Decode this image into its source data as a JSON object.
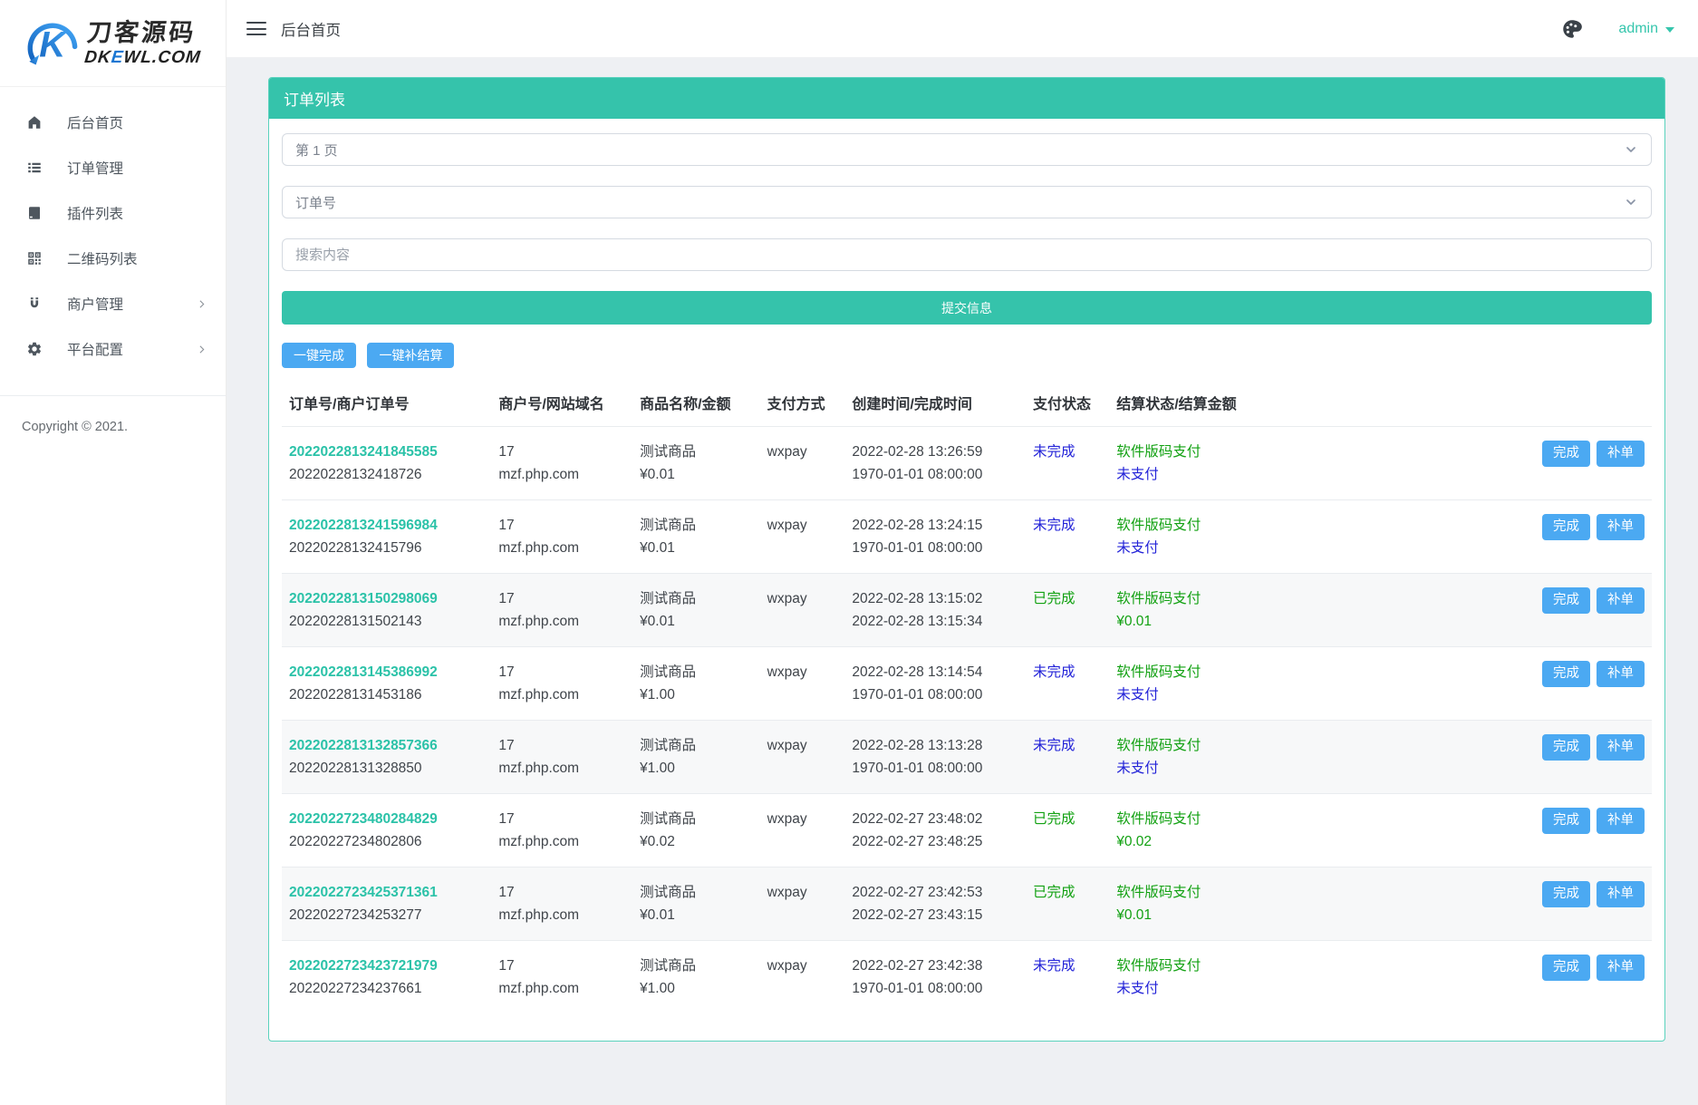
{
  "header": {
    "title": "后台首页",
    "user": "admin"
  },
  "sidebar": {
    "logo": {
      "line1": "刀客源码",
      "line2_pre": "DK",
      "line2_e": "E",
      "line2_post": "WL.COM"
    },
    "items": [
      {
        "name": "home",
        "icon": "home-icon",
        "label": "后台首页",
        "has_children": false
      },
      {
        "name": "orders",
        "icon": "list-icon",
        "label": "订单管理",
        "has_children": false
      },
      {
        "name": "plugins",
        "icon": "plugin-icon",
        "label": "插件列表",
        "has_children": false
      },
      {
        "name": "qrcodes",
        "icon": "qrcode-icon",
        "label": "二维码列表",
        "has_children": false
      },
      {
        "name": "merchants",
        "icon": "magnet-icon",
        "label": "商户管理",
        "has_children": true
      },
      {
        "name": "platform",
        "icon": "gear-icon",
        "label": "平台配置",
        "has_children": true
      }
    ],
    "copyright": "Copyright © 2021."
  },
  "panel": {
    "title": "订单列表",
    "page_select_value": "第 1 页",
    "order_field_select_value": "订单号",
    "search_placeholder": "搜索内容",
    "submit_label": "提交信息",
    "bulk_complete_label": "一键完成",
    "bulk_settle_label": "一键补结算",
    "table": {
      "columns": [
        "订单号/商户订单号",
        "商户号/网站域名",
        "商品名称/金额",
        "支付方式",
        "创建时间/完成时间",
        "支付状态",
        "结算状态/结算金额",
        ""
      ],
      "action_complete": "完成",
      "action_supplement": "补单",
      "rows": [
        {
          "order_no": "2022022813241845585",
          "merchant_order_no": "20220228132418726",
          "merchant_id": "17",
          "domain": "mzf.php.com",
          "product": "测试商品",
          "amount": "¥0.01",
          "pay_method": "wxpay",
          "created_at": "2022-02-28 13:26:59",
          "completed_at": "1970-01-01 08:00:00",
          "pay_status": "未完成",
          "pay_status_tone": "blue",
          "settle_status": "软件版码支付",
          "settle_detail": "未支付",
          "settle_detail_tone": "blue",
          "striped": false
        },
        {
          "order_no": "2022022813241596984",
          "merchant_order_no": "20220228132415796",
          "merchant_id": "17",
          "domain": "mzf.php.com",
          "product": "测试商品",
          "amount": "¥0.01",
          "pay_method": "wxpay",
          "created_at": "2022-02-28 13:24:15",
          "completed_at": "1970-01-01 08:00:00",
          "pay_status": "未完成",
          "pay_status_tone": "blue",
          "settle_status": "软件版码支付",
          "settle_detail": "未支付",
          "settle_detail_tone": "blue",
          "striped": false
        },
        {
          "order_no": "2022022813150298069",
          "merchant_order_no": "20220228131502143",
          "merchant_id": "17",
          "domain": "mzf.php.com",
          "product": "测试商品",
          "amount": "¥0.01",
          "pay_method": "wxpay",
          "created_at": "2022-02-28 13:15:02",
          "completed_at": "2022-02-28 13:15:34",
          "pay_status": "已完成",
          "pay_status_tone": "green",
          "settle_status": "软件版码支付",
          "settle_detail": "¥0.01",
          "settle_detail_tone": "green",
          "striped": true
        },
        {
          "order_no": "2022022813145386992",
          "merchant_order_no": "20220228131453186",
          "merchant_id": "17",
          "domain": "mzf.php.com",
          "product": "测试商品",
          "amount": "¥1.00",
          "pay_method": "wxpay",
          "created_at": "2022-02-28 13:14:54",
          "completed_at": "1970-01-01 08:00:00",
          "pay_status": "未完成",
          "pay_status_tone": "blue",
          "settle_status": "软件版码支付",
          "settle_detail": "未支付",
          "settle_detail_tone": "blue",
          "striped": false
        },
        {
          "order_no": "2022022813132857366",
          "merchant_order_no": "20220228131328850",
          "merchant_id": "17",
          "domain": "mzf.php.com",
          "product": "测试商品",
          "amount": "¥1.00",
          "pay_method": "wxpay",
          "created_at": "2022-02-28 13:13:28",
          "completed_at": "1970-01-01 08:00:00",
          "pay_status": "未完成",
          "pay_status_tone": "blue",
          "settle_status": "软件版码支付",
          "settle_detail": "未支付",
          "settle_detail_tone": "blue",
          "striped": true
        },
        {
          "order_no": "2022022723480284829",
          "merchant_order_no": "20220227234802806",
          "merchant_id": "17",
          "domain": "mzf.php.com",
          "product": "测试商品",
          "amount": "¥0.02",
          "pay_method": "wxpay",
          "created_at": "2022-02-27 23:48:02",
          "completed_at": "2022-02-27 23:48:25",
          "pay_status": "已完成",
          "pay_status_tone": "green",
          "settle_status": "软件版码支付",
          "settle_detail": "¥0.02",
          "settle_detail_tone": "green",
          "striped": false
        },
        {
          "order_no": "2022022723425371361",
          "merchant_order_no": "20220227234253277",
          "merchant_id": "17",
          "domain": "mzf.php.com",
          "product": "测试商品",
          "amount": "¥0.01",
          "pay_method": "wxpay",
          "created_at": "2022-02-27 23:42:53",
          "completed_at": "2022-02-27 23:43:15",
          "pay_status": "已完成",
          "pay_status_tone": "green",
          "settle_status": "软件版码支付",
          "settle_detail": "¥0.01",
          "settle_detail_tone": "green",
          "striped": true
        },
        {
          "order_no": "2022022723423721979",
          "merchant_order_no": "20220227234237661",
          "merchant_id": "17",
          "domain": "mzf.php.com",
          "product": "测试商品",
          "amount": "¥1.00",
          "pay_method": "wxpay",
          "created_at": "2022-02-27 23:42:38",
          "completed_at": "1970-01-01 08:00:00",
          "pay_status": "未完成",
          "pay_status_tone": "blue",
          "settle_status": "软件版码支付",
          "settle_detail": "未支付",
          "settle_detail_tone": "blue",
          "striped": false
        }
      ]
    }
  },
  "colors": {
    "teal": "#35c3ab",
    "teal_border": "#5ad2bd",
    "blue_button": "#4ba9f2",
    "status_blue": "#2323d8",
    "status_green": "#12a112",
    "link_teal": "#2bc2a8",
    "logo_blue": "#1976d2"
  }
}
